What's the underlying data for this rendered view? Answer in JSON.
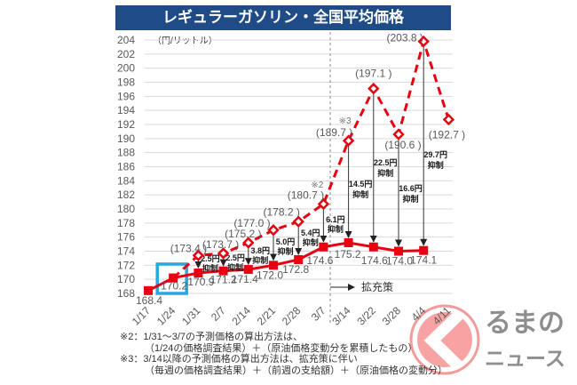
{
  "chart_data": {
    "type": "line",
    "title": "レギュラーガソリン・全国平均価格",
    "ylabel": "（円/リットル）",
    "xlabel": "",
    "ylim": [
      168,
      204
    ],
    "yticks": [
      168,
      170,
      172,
      174,
      176,
      178,
      180,
      182,
      184,
      186,
      188,
      190,
      192,
      194,
      196,
      198,
      200,
      202,
      204
    ],
    "grid": true,
    "categories": [
      "1/17",
      "1/24",
      "1/31",
      "2/7",
      "2/14",
      "2/21",
      "2/28",
      "3/7",
      "3/14",
      "3/22",
      "3/28",
      "4/4",
      "4/11"
    ],
    "series": [
      {
        "id": "actual",
        "line_style": "solid",
        "marker": "square",
        "color": "#e60012",
        "values": [
          168.4,
          170.2,
          170.9,
          171.2,
          171.4,
          172.0,
          172.8,
          174.6,
          175.2,
          174.6,
          174.0,
          174.1,
          null
        ],
        "labels": [
          "168.4",
          "170.2",
          "170.9",
          "171.2",
          "171.4",
          "172.0",
          "172.8",
          "174.6",
          "175.2",
          "174.6",
          "174.0",
          "174.1",
          null
        ]
      },
      {
        "id": "predicted",
        "line_style": "dashed",
        "marker": "diamond",
        "color": "#e60012",
        "values": [
          null,
          null,
          173.4,
          173.7,
          175.2,
          177.0,
          178.2,
          180.7,
          189.7,
          197.1,
          190.6,
          203.8,
          192.7
        ],
        "labels": [
          null,
          null,
          "(173.4 )",
          "(173.7 )",
          "(175.2 )",
          "(177.0 )",
          "(178.2 )",
          "(180.7 )",
          "(189.7 )",
          "(197.1 )",
          "(190.6 )",
          "(203.8 )",
          "(192.7 )"
        ]
      }
    ],
    "suppression": [
      {
        "category": "1/31",
        "amount": "2.5円",
        "note": "抑制"
      },
      {
        "category": "2/7",
        "amount": "2.5円",
        "note": "抑制"
      },
      {
        "category": "2/14",
        "amount": "3.8円",
        "note": "抑制"
      },
      {
        "category": "2/21",
        "amount": "5.0円",
        "note": "抑制"
      },
      {
        "category": "2/28",
        "amount": "5.4円",
        "note": "抑制"
      },
      {
        "category": "3/7",
        "amount": "6.1円",
        "note": "抑制"
      },
      {
        "category": "3/14",
        "amount": "14.5円",
        "note": "抑制"
      },
      {
        "category": "3/22",
        "amount": "22.5円",
        "note": "抑制"
      },
      {
        "category": "3/28",
        "amount": "16.6円",
        "note": "抑制"
      },
      {
        "category": "4/4",
        "amount": "29.7円",
        "note": "抑制"
      }
    ],
    "annotations": [
      {
        "text": "※2",
        "category": "3/7"
      },
      {
        "text": "※3",
        "category": "3/14"
      }
    ],
    "policy_marker": {
      "text": "拡充策",
      "from_category": "3/14"
    },
    "highlight_category": "1/24",
    "divider_after": "3/7",
    "colors": {
      "line": "#e60012",
      "highlight": "#25a9e0",
      "grid": "#d9d9d9",
      "header": "#1f4b87"
    }
  },
  "footnotes": [
    "※2：1/31～3/7の予測価格の算出方法は、",
    "（1/24の価格調査結果）＋（原油価格変動分を累積したもの）",
    "※3：3/14以降の予測価格の算出方法は、拡充策に伴い",
    "（毎週の価格調査結果）＋（前週の支給額）＋（原油価格の変動分）"
  ],
  "logo": {
    "text": "るまの",
    "subtext": "ニュース",
    "color": "#8e8e8e",
    "accent": "#f7a3a3"
  }
}
